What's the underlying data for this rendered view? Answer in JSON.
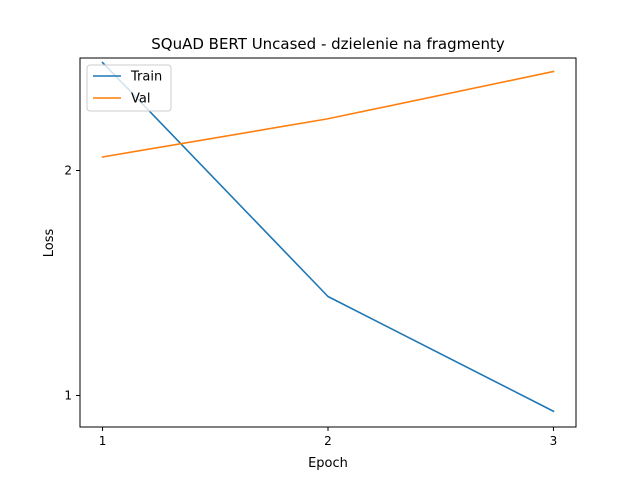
{
  "chart_data": {
    "type": "line",
    "title": "SQuAD BERT Uncased - dzielenie na fragmenty",
    "xlabel": "Epoch",
    "ylabel": "Loss",
    "x": [
      1,
      2,
      3
    ],
    "xticks": [
      "1",
      "2",
      "3"
    ],
    "yticks": [
      "1",
      "2"
    ],
    "xlim": [
      0.9,
      3.1
    ],
    "ylim": [
      0.86,
      2.5
    ],
    "grid": false,
    "legend_position": "top-left",
    "series": [
      {
        "name": "Train",
        "color": "#1f77b4",
        "values": [
          2.48,
          1.44,
          0.93
        ]
      },
      {
        "name": "Val",
        "color": "#ff7f0e",
        "values": [
          2.06,
          2.23,
          2.44
        ]
      }
    ]
  }
}
